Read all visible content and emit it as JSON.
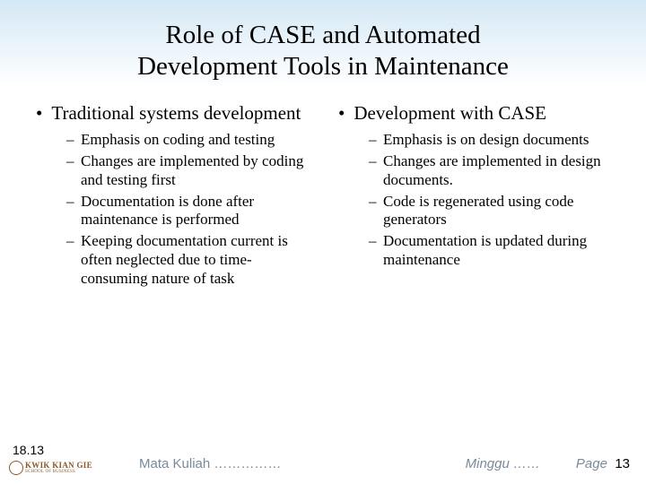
{
  "title_line1": "Role of CASE and Automated",
  "title_line2": "Development Tools in Maintenance",
  "left": {
    "heading": "Traditional systems development",
    "items": [
      "Emphasis on coding and testing",
      "Changes are implemented by coding and testing first",
      "Documentation is done after maintenance is performed",
      "Keeping documentation current is often neglected due to time-consuming nature of task"
    ]
  },
  "right": {
    "heading": "Development with CASE",
    "items": [
      "Emphasis is on design documents",
      "Changes are implemented in design documents.",
      "Code is regenerated using code generators",
      "Documentation is updated during maintenance"
    ]
  },
  "footer": {
    "slide_num": "18.13",
    "logo_top": "KWIK KIAN GIE",
    "logo_bot": "SCHOOL OF BUSINESS",
    "course": "Mata Kuliah ……………",
    "week": "Minggu ……",
    "page_label": "Page",
    "page_num": "13"
  }
}
